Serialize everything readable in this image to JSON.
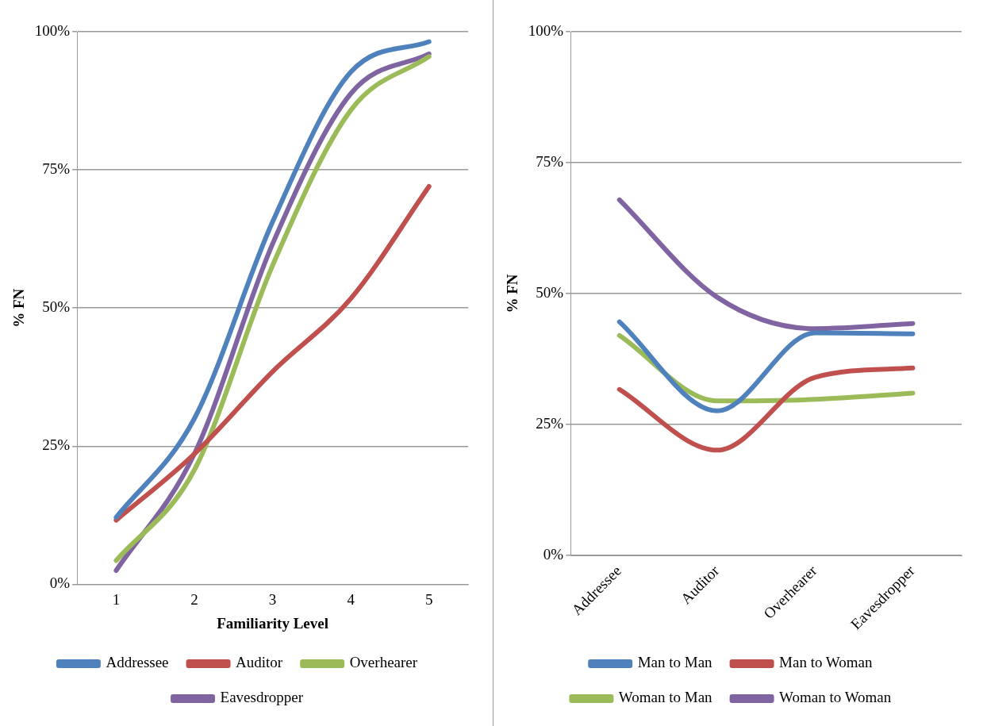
{
  "chart_data": [
    {
      "type": "line",
      "xlabel": "Familiarity Level",
      "ylabel": "% FN",
      "categories": [
        "1",
        "2",
        "3",
        "4",
        "5"
      ],
      "series": [
        {
          "name": "Addressee",
          "color": "#4f81bd",
          "values": [
            12.1,
            30,
            65.6,
            92.7,
            98.2
          ]
        },
        {
          "name": "Auditor",
          "color": "#c0504d",
          "values": [
            11.6,
            23.6,
            38.5,
            51.7,
            72
          ]
        },
        {
          "name": "Overhearer",
          "color": "#9bbb59",
          "values": [
            4.3,
            20.7,
            57.7,
            85.8,
            95.5
          ]
        },
        {
          "name": "Eavesdropper",
          "color": "#8064a2",
          "values": [
            2.5,
            23.6,
            61.6,
            88.8,
            96
          ]
        }
      ],
      "ylim": [
        0,
        100
      ],
      "yticks": [
        {
          "value": 0,
          "label": "0%"
        },
        {
          "value": 25,
          "label": "25%"
        },
        {
          "value": 50,
          "label": "50%"
        },
        {
          "value": 75,
          "label": "75%"
        },
        {
          "value": 100,
          "label": "100%"
        }
      ],
      "grid": "y",
      "legend": "bottom",
      "marker": "none",
      "line_style": "solid"
    },
    {
      "type": "line",
      "ylabel": "% FN",
      "categories": [
        "Addressee",
        "Auditor",
        "Overhearer",
        "Eavesdropper"
      ],
      "series": [
        {
          "name": "Man to Man",
          "color": "#4f81bd",
          "values": [
            44.6,
            27.6,
            42.5,
            42.3
          ]
        },
        {
          "name": "Man to Woman",
          "color": "#c0504d",
          "values": [
            31.7,
            20.1,
            34,
            35.8
          ]
        },
        {
          "name": "Woman to Man",
          "color": "#9bbb59",
          "values": [
            42,
            29.5,
            29.8,
            31
          ]
        },
        {
          "name": "Woman to Woman",
          "color": "#8064a2",
          "values": [
            67.9,
            49.3,
            43.3,
            44.3
          ]
        }
      ],
      "ylim": [
        0,
        100
      ],
      "yticks": [
        {
          "value": 0,
          "label": "0%"
        },
        {
          "value": 25,
          "label": "25%"
        },
        {
          "value": 50,
          "label": "50%"
        },
        {
          "value": 75,
          "label": "75%"
        },
        {
          "value": 100,
          "label": "100%"
        }
      ],
      "grid": "y",
      "legend": "bottom",
      "marker": "none",
      "line_style": "solid"
    }
  ]
}
